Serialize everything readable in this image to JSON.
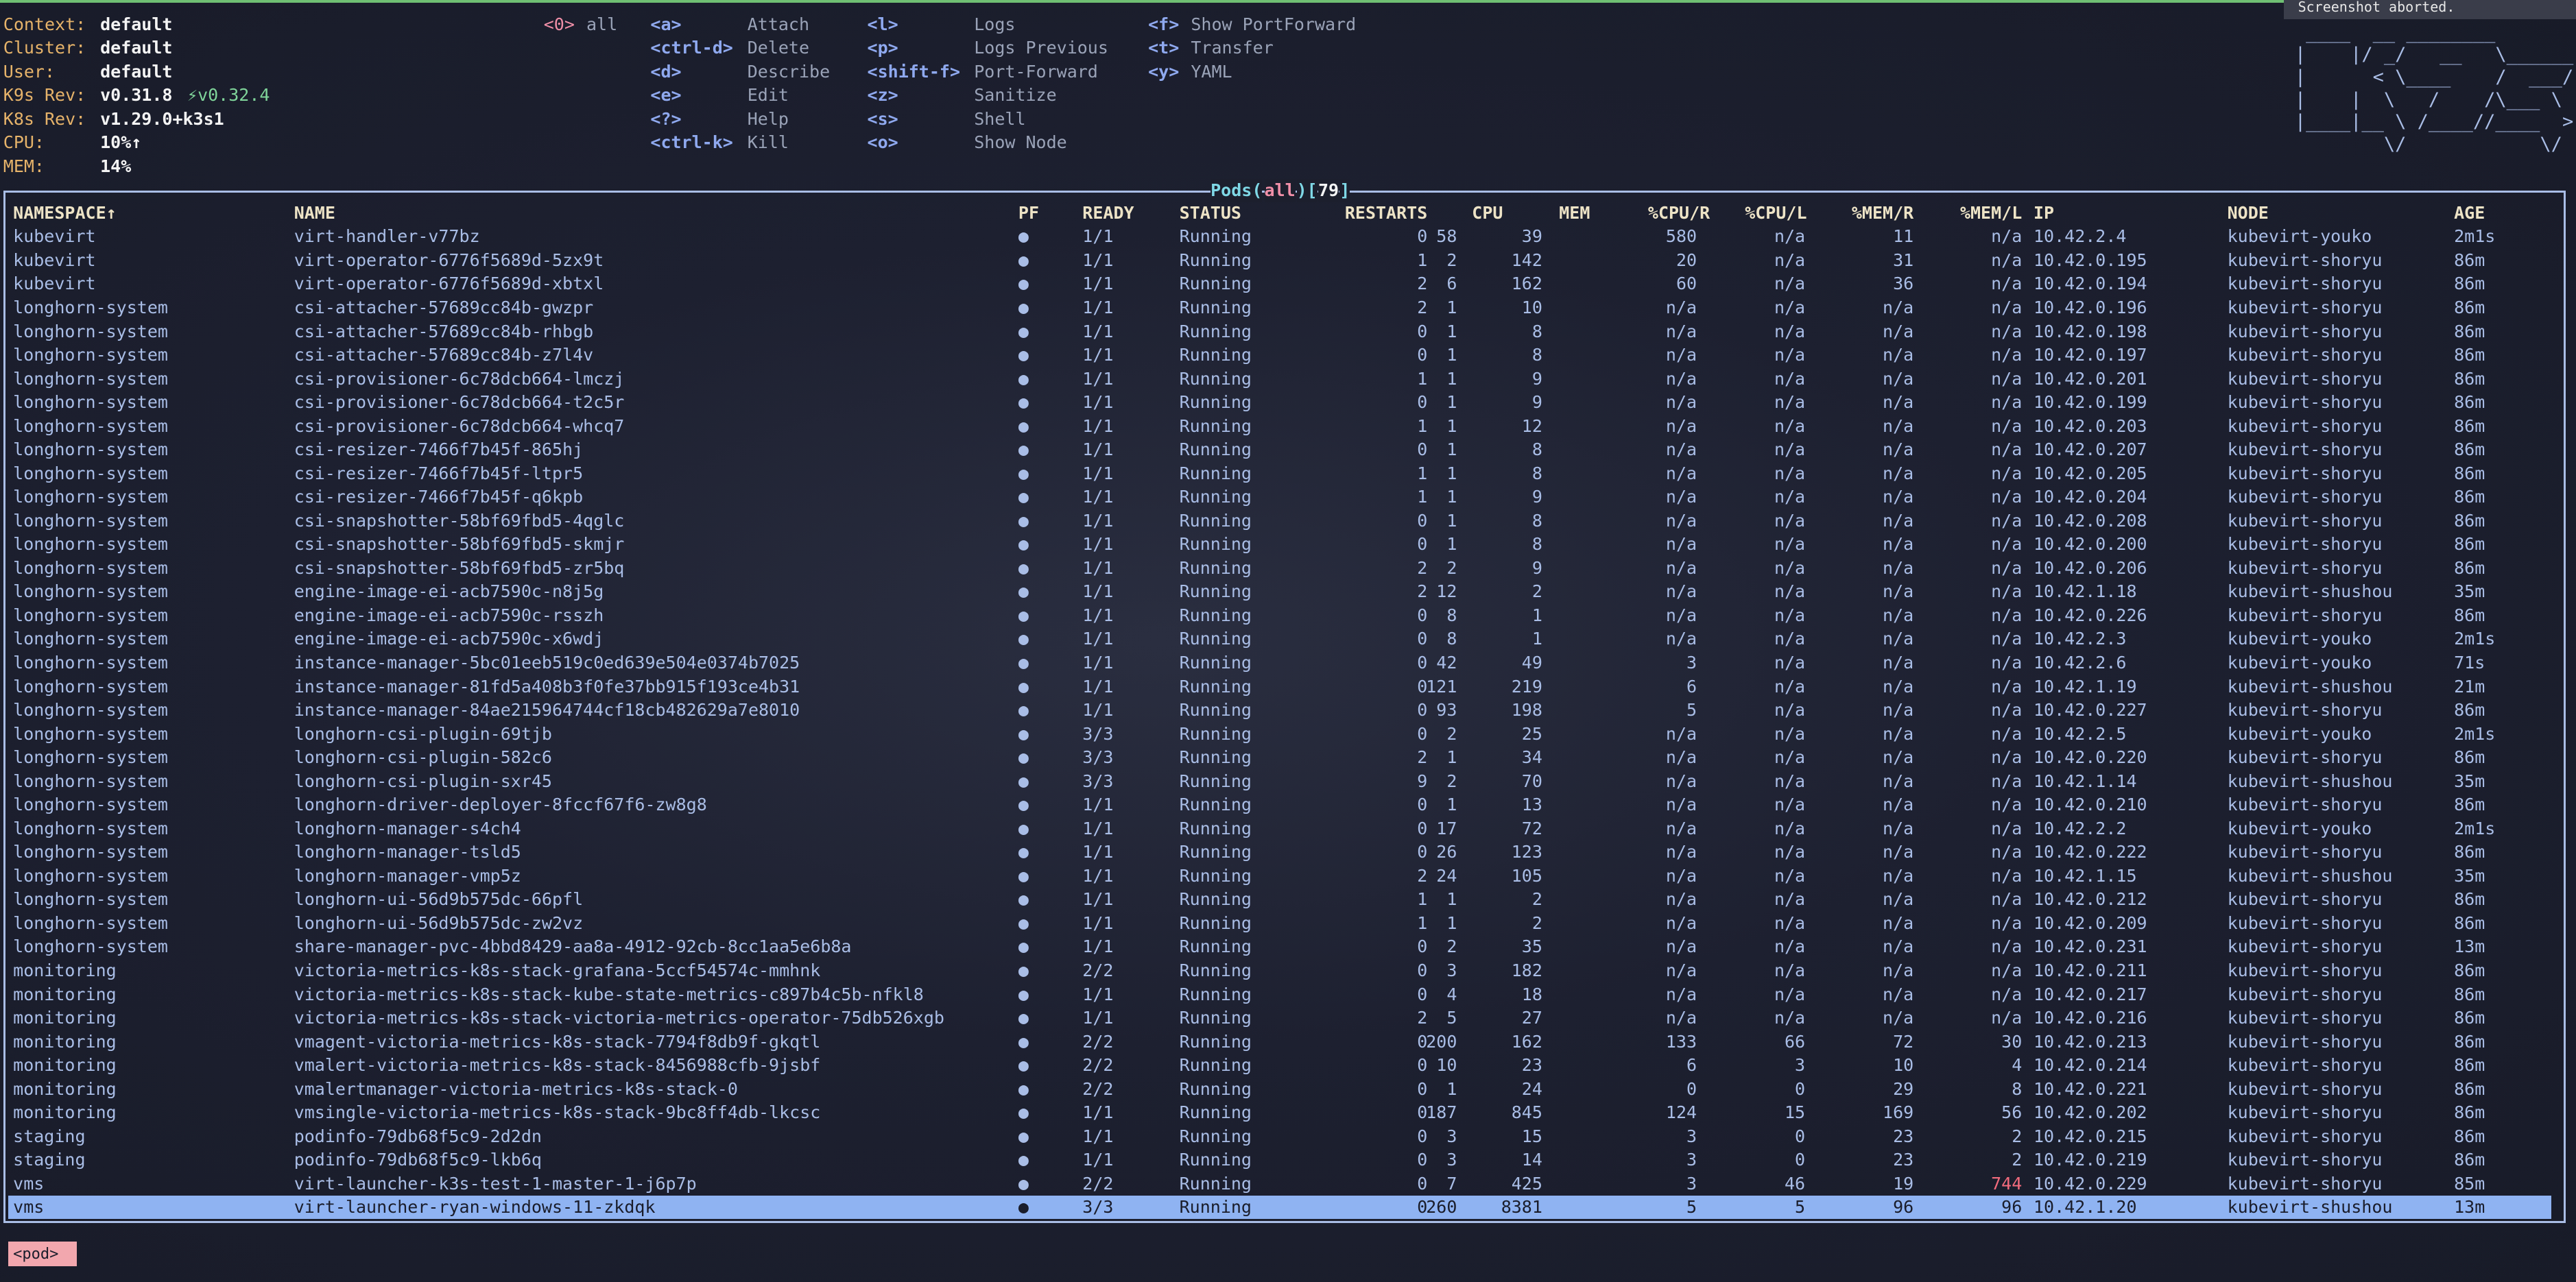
{
  "info": [
    {
      "label": "Context:",
      "value": "default"
    },
    {
      "label": "Cluster:",
      "value": "default"
    },
    {
      "label": "User:",
      "value": "default"
    },
    {
      "label": "K9s Rev:",
      "value": "v0.31.8",
      "extra": "⚡v0.32.4"
    },
    {
      "label": "K8s Rev:",
      "value": "v1.29.0+k3s1"
    },
    {
      "label": "CPU:",
      "value": "10%↑"
    },
    {
      "label": "MEM:",
      "value": "14%"
    }
  ],
  "namespace_hint": {
    "key": "<0>",
    "label": "all"
  },
  "shortcuts": [
    [
      {
        "key": "<a>",
        "label": "Attach"
      },
      {
        "key": "<ctrl-d>",
        "label": "Delete"
      },
      {
        "key": "<d>",
        "label": "Describe"
      },
      {
        "key": "<e>",
        "label": "Edit"
      },
      {
        "key": "<?>",
        "label": "Help"
      },
      {
        "key": "<ctrl-k>",
        "label": "Kill"
      }
    ],
    [
      {
        "key": "<l>",
        "label": "Logs"
      },
      {
        "key": "<p>",
        "label": "Logs Previous"
      },
      {
        "key": "<shift-f>",
        "label": "Port-Forward"
      },
      {
        "key": "<z>",
        "label": "Sanitize"
      },
      {
        "key": "<s>",
        "label": "Shell"
      },
      {
        "key": "<o>",
        "label": "Show Node"
      }
    ],
    [
      {
        "key": "<f>",
        "label": "Show PortForward"
      },
      {
        "key": "<t>",
        "label": "Transfer"
      },
      {
        "key": "<y>",
        "label": "YAML"
      }
    ]
  ],
  "logo": [
    " ____  __ ________       ",
    "|    |/ _/   __   \\______ ",
    "|      < \\____    /  ___/ ",
    "|    |  \\   /    /\\___ \\  ",
    "|____|__ \\ /____//____  > ",
    "        \\/            \\/  "
  ],
  "notification": "Screenshot aborted.",
  "table": {
    "title": [
      "Pods(",
      "all",
      ")[",
      "79",
      "]"
    ],
    "columns": [
      "NAMESPACE↑",
      "NAME",
      "PF",
      "READY",
      "STATUS",
      "RESTARTS",
      "CPU",
      "MEM",
      "%CPU/R",
      "%CPU/L",
      "%MEM/R",
      "%MEM/L",
      "IP",
      "NODE",
      "AGE"
    ],
    "selected": 41,
    "warn": [
      [
        40,
        11
      ]
    ],
    "rows": [
      [
        "kubevirt",
        "virt-handler-v77bz",
        "●",
        "1/1",
        "Running",
        "0",
        "58",
        "39",
        "580",
        "n/a",
        "11",
        "n/a",
        "10.42.2.4",
        "kubevirt-youko",
        "2m1s"
      ],
      [
        "kubevirt",
        "virt-operator-6776f5689d-5zx9t",
        "●",
        "1/1",
        "Running",
        "1",
        "2",
        "142",
        "20",
        "n/a",
        "31",
        "n/a",
        "10.42.0.195",
        "kubevirt-shoryu",
        "86m"
      ],
      [
        "kubevirt",
        "virt-operator-6776f5689d-xbtxl",
        "●",
        "1/1",
        "Running",
        "2",
        "6",
        "162",
        "60",
        "n/a",
        "36",
        "n/a",
        "10.42.0.194",
        "kubevirt-shoryu",
        "86m"
      ],
      [
        "longhorn-system",
        "csi-attacher-57689cc84b-gwzpr",
        "●",
        "1/1",
        "Running",
        "2",
        "1",
        "10",
        "n/a",
        "n/a",
        "n/a",
        "n/a",
        "10.42.0.196",
        "kubevirt-shoryu",
        "86m"
      ],
      [
        "longhorn-system",
        "csi-attacher-57689cc84b-rhbgb",
        "●",
        "1/1",
        "Running",
        "0",
        "1",
        "8",
        "n/a",
        "n/a",
        "n/a",
        "n/a",
        "10.42.0.198",
        "kubevirt-shoryu",
        "86m"
      ],
      [
        "longhorn-system",
        "csi-attacher-57689cc84b-z7l4v",
        "●",
        "1/1",
        "Running",
        "0",
        "1",
        "8",
        "n/a",
        "n/a",
        "n/a",
        "n/a",
        "10.42.0.197",
        "kubevirt-shoryu",
        "86m"
      ],
      [
        "longhorn-system",
        "csi-provisioner-6c78dcb664-lmczj",
        "●",
        "1/1",
        "Running",
        "1",
        "1",
        "9",
        "n/a",
        "n/a",
        "n/a",
        "n/a",
        "10.42.0.201",
        "kubevirt-shoryu",
        "86m"
      ],
      [
        "longhorn-system",
        "csi-provisioner-6c78dcb664-t2c5r",
        "●",
        "1/1",
        "Running",
        "0",
        "1",
        "9",
        "n/a",
        "n/a",
        "n/a",
        "n/a",
        "10.42.0.199",
        "kubevirt-shoryu",
        "86m"
      ],
      [
        "longhorn-system",
        "csi-provisioner-6c78dcb664-whcq7",
        "●",
        "1/1",
        "Running",
        "1",
        "1",
        "12",
        "n/a",
        "n/a",
        "n/a",
        "n/a",
        "10.42.0.203",
        "kubevirt-shoryu",
        "86m"
      ],
      [
        "longhorn-system",
        "csi-resizer-7466f7b45f-865hj",
        "●",
        "1/1",
        "Running",
        "0",
        "1",
        "8",
        "n/a",
        "n/a",
        "n/a",
        "n/a",
        "10.42.0.207",
        "kubevirt-shoryu",
        "86m"
      ],
      [
        "longhorn-system",
        "csi-resizer-7466f7b45f-ltpr5",
        "●",
        "1/1",
        "Running",
        "1",
        "1",
        "8",
        "n/a",
        "n/a",
        "n/a",
        "n/a",
        "10.42.0.205",
        "kubevirt-shoryu",
        "86m"
      ],
      [
        "longhorn-system",
        "csi-resizer-7466f7b45f-q6kpb",
        "●",
        "1/1",
        "Running",
        "1",
        "1",
        "9",
        "n/a",
        "n/a",
        "n/a",
        "n/a",
        "10.42.0.204",
        "kubevirt-shoryu",
        "86m"
      ],
      [
        "longhorn-system",
        "csi-snapshotter-58bf69fbd5-4qglc",
        "●",
        "1/1",
        "Running",
        "0",
        "1",
        "8",
        "n/a",
        "n/a",
        "n/a",
        "n/a",
        "10.42.0.208",
        "kubevirt-shoryu",
        "86m"
      ],
      [
        "longhorn-system",
        "csi-snapshotter-58bf69fbd5-skmjr",
        "●",
        "1/1",
        "Running",
        "0",
        "1",
        "8",
        "n/a",
        "n/a",
        "n/a",
        "n/a",
        "10.42.0.200",
        "kubevirt-shoryu",
        "86m"
      ],
      [
        "longhorn-system",
        "csi-snapshotter-58bf69fbd5-zr5bq",
        "●",
        "1/1",
        "Running",
        "2",
        "2",
        "9",
        "n/a",
        "n/a",
        "n/a",
        "n/a",
        "10.42.0.206",
        "kubevirt-shoryu",
        "86m"
      ],
      [
        "longhorn-system",
        "engine-image-ei-acb7590c-n8j5g",
        "●",
        "1/1",
        "Running",
        "2",
        "12",
        "2",
        "n/a",
        "n/a",
        "n/a",
        "n/a",
        "10.42.1.18",
        "kubevirt-shushou",
        "35m"
      ],
      [
        "longhorn-system",
        "engine-image-ei-acb7590c-rsszh",
        "●",
        "1/1",
        "Running",
        "0",
        "8",
        "1",
        "n/a",
        "n/a",
        "n/a",
        "n/a",
        "10.42.0.226",
        "kubevirt-shoryu",
        "86m"
      ],
      [
        "longhorn-system",
        "engine-image-ei-acb7590c-x6wdj",
        "●",
        "1/1",
        "Running",
        "0",
        "8",
        "1",
        "n/a",
        "n/a",
        "n/a",
        "n/a",
        "10.42.2.3",
        "kubevirt-youko",
        "2m1s"
      ],
      [
        "longhorn-system",
        "instance-manager-5bc01eeb519c0ed639e504e0374b7025",
        "●",
        "1/1",
        "Running",
        "0",
        "42",
        "49",
        "3",
        "n/a",
        "n/a",
        "n/a",
        "10.42.2.6",
        "kubevirt-youko",
        "71s"
      ],
      [
        "longhorn-system",
        "instance-manager-81fd5a408b3f0fe37bb915f193ce4b31",
        "●",
        "1/1",
        "Running",
        "0",
        "121",
        "219",
        "6",
        "n/a",
        "n/a",
        "n/a",
        "10.42.1.19",
        "kubevirt-shushou",
        "21m"
      ],
      [
        "longhorn-system",
        "instance-manager-84ae215964744cf18cb482629a7e8010",
        "●",
        "1/1",
        "Running",
        "0",
        "93",
        "198",
        "5",
        "n/a",
        "n/a",
        "n/a",
        "10.42.0.227",
        "kubevirt-shoryu",
        "86m"
      ],
      [
        "longhorn-system",
        "longhorn-csi-plugin-69tjb",
        "●",
        "3/3",
        "Running",
        "0",
        "2",
        "25",
        "n/a",
        "n/a",
        "n/a",
        "n/a",
        "10.42.2.5",
        "kubevirt-youko",
        "2m1s"
      ],
      [
        "longhorn-system",
        "longhorn-csi-plugin-582c6",
        "●",
        "3/3",
        "Running",
        "2",
        "1",
        "34",
        "n/a",
        "n/a",
        "n/a",
        "n/a",
        "10.42.0.220",
        "kubevirt-shoryu",
        "86m"
      ],
      [
        "longhorn-system",
        "longhorn-csi-plugin-sxr45",
        "●",
        "3/3",
        "Running",
        "9",
        "2",
        "70",
        "n/a",
        "n/a",
        "n/a",
        "n/a",
        "10.42.1.14",
        "kubevirt-shushou",
        "35m"
      ],
      [
        "longhorn-system",
        "longhorn-driver-deployer-8fccf67f6-zw8g8",
        "●",
        "1/1",
        "Running",
        "0",
        "1",
        "13",
        "n/a",
        "n/a",
        "n/a",
        "n/a",
        "10.42.0.210",
        "kubevirt-shoryu",
        "86m"
      ],
      [
        "longhorn-system",
        "longhorn-manager-s4ch4",
        "●",
        "1/1",
        "Running",
        "0",
        "17",
        "72",
        "n/a",
        "n/a",
        "n/a",
        "n/a",
        "10.42.2.2",
        "kubevirt-youko",
        "2m1s"
      ],
      [
        "longhorn-system",
        "longhorn-manager-tsld5",
        "●",
        "1/1",
        "Running",
        "0",
        "26",
        "123",
        "n/a",
        "n/a",
        "n/a",
        "n/a",
        "10.42.0.222",
        "kubevirt-shoryu",
        "86m"
      ],
      [
        "longhorn-system",
        "longhorn-manager-vmp5z",
        "●",
        "1/1",
        "Running",
        "2",
        "24",
        "105",
        "n/a",
        "n/a",
        "n/a",
        "n/a",
        "10.42.1.15",
        "kubevirt-shushou",
        "35m"
      ],
      [
        "longhorn-system",
        "longhorn-ui-56d9b575dc-66pfl",
        "●",
        "1/1",
        "Running",
        "1",
        "1",
        "2",
        "n/a",
        "n/a",
        "n/a",
        "n/a",
        "10.42.0.212",
        "kubevirt-shoryu",
        "86m"
      ],
      [
        "longhorn-system",
        "longhorn-ui-56d9b575dc-zw2vz",
        "●",
        "1/1",
        "Running",
        "1",
        "1",
        "2",
        "n/a",
        "n/a",
        "n/a",
        "n/a",
        "10.42.0.209",
        "kubevirt-shoryu",
        "86m"
      ],
      [
        "longhorn-system",
        "share-manager-pvc-4bbd8429-aa8a-4912-92cb-8cc1aa5e6b8a",
        "●",
        "1/1",
        "Running",
        "0",
        "2",
        "35",
        "n/a",
        "n/a",
        "n/a",
        "n/a",
        "10.42.0.231",
        "kubevirt-shoryu",
        "13m"
      ],
      [
        "monitoring",
        "victoria-metrics-k8s-stack-grafana-5ccf54574c-mmhnk",
        "●",
        "2/2",
        "Running",
        "0",
        "3",
        "182",
        "n/a",
        "n/a",
        "n/a",
        "n/a",
        "10.42.0.211",
        "kubevirt-shoryu",
        "86m"
      ],
      [
        "monitoring",
        "victoria-metrics-k8s-stack-kube-state-metrics-c897b4c5b-nfkl8",
        "●",
        "1/1",
        "Running",
        "0",
        "4",
        "18",
        "n/a",
        "n/a",
        "n/a",
        "n/a",
        "10.42.0.217",
        "kubevirt-shoryu",
        "86m"
      ],
      [
        "monitoring",
        "victoria-metrics-k8s-stack-victoria-metrics-operator-75db526xgb",
        "●",
        "1/1",
        "Running",
        "2",
        "5",
        "27",
        "n/a",
        "n/a",
        "n/a",
        "n/a",
        "10.42.0.216",
        "kubevirt-shoryu",
        "86m"
      ],
      [
        "monitoring",
        "vmagent-victoria-metrics-k8s-stack-7794f8db9f-gkqtl",
        "●",
        "2/2",
        "Running",
        "0",
        "200",
        "162",
        "133",
        "66",
        "72",
        "30",
        "10.42.0.213",
        "kubevirt-shoryu",
        "86m"
      ],
      [
        "monitoring",
        "vmalert-victoria-metrics-k8s-stack-8456988cfb-9jsbf",
        "●",
        "2/2",
        "Running",
        "0",
        "10",
        "23",
        "6",
        "3",
        "10",
        "4",
        "10.42.0.214",
        "kubevirt-shoryu",
        "86m"
      ],
      [
        "monitoring",
        "vmalertmanager-victoria-metrics-k8s-stack-0",
        "●",
        "2/2",
        "Running",
        "0",
        "1",
        "24",
        "0",
        "0",
        "29",
        "8",
        "10.42.0.221",
        "kubevirt-shoryu",
        "86m"
      ],
      [
        "monitoring",
        "vmsingle-victoria-metrics-k8s-stack-9bc8ff4db-lkcsc",
        "●",
        "1/1",
        "Running",
        "0",
        "187",
        "845",
        "124",
        "15",
        "169",
        "56",
        "10.42.0.202",
        "kubevirt-shoryu",
        "86m"
      ],
      [
        "staging",
        "podinfo-79db68f5c9-2d2dn",
        "●",
        "1/1",
        "Running",
        "0",
        "3",
        "15",
        "3",
        "0",
        "23",
        "2",
        "10.42.0.215",
        "kubevirt-shoryu",
        "86m"
      ],
      [
        "staging",
        "podinfo-79db68f5c9-lkb6q",
        "●",
        "1/1",
        "Running",
        "0",
        "3",
        "14",
        "3",
        "0",
        "23",
        "2",
        "10.42.0.219",
        "kubevirt-shoryu",
        "86m"
      ],
      [
        "vms",
        "virt-launcher-k3s-test-1-master-1-j6p7p",
        "●",
        "2/2",
        "Running",
        "0",
        "7",
        "425",
        "3",
        "46",
        "19",
        "744",
        "10.42.0.229",
        "kubevirt-shoryu",
        "85m"
      ],
      [
        "vms",
        "virt-launcher-ryan-windows-11-zkdqk",
        "●",
        "3/3",
        "Running",
        "0",
        "260",
        "8381",
        "5",
        "5",
        "96",
        "96",
        "10.42.1.20",
        "kubevirt-shushou",
        "13m"
      ]
    ]
  },
  "crumb": "<pod>"
}
